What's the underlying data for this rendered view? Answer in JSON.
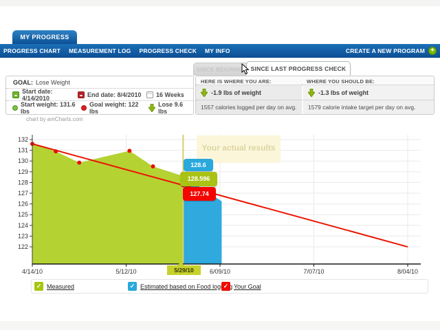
{
  "header": {
    "tab": "MY PROGRESS",
    "nav": [
      "PROGRESS CHART",
      "MEASUREMENT LOG",
      "PROGRESS CHECK",
      "MY INFO"
    ],
    "create_program": "CREATE A NEW PROGRAM"
  },
  "tabs": {
    "inactive": "SINCE BEGINNING",
    "active": "SINCE LAST PROGRESS CHECK"
  },
  "goal": {
    "label": "GOAL:",
    "value": "Lose Weight",
    "start_date": "Start date: 4/14/2010",
    "end_date": "End date: 8/4/2010",
    "duration": "16 Weeks",
    "start_weight": "Start weight: 131.6 lbs",
    "goal_weight": "Goal weight: 122 lbs",
    "lose": "Lose 9.6 lbs"
  },
  "stats": {
    "here_title": "HERE IS WHERE YOU ARE:",
    "should_title": "WHERE YOU SHOULD BE:",
    "here_weight": "-1.9 lbs of weight",
    "should_weight": "-1.3 lbs of weight",
    "here_calories": "1557 calories logged per day on avg.",
    "should_calories": "1579 calorie intake target per day on avg."
  },
  "icons": {
    "plus": "+",
    "check": "✓"
  },
  "chart_data": {
    "type": "area",
    "title": "chart by amCharts.com",
    "ylim": [
      120.4,
      132.45
    ],
    "yticks": [
      122,
      123,
      124,
      125,
      126,
      127,
      128,
      129,
      130,
      131,
      132
    ],
    "xlim_days": [
      0,
      112
    ],
    "xticks": [
      {
        "label": "4/14/10",
        "day": 0
      },
      {
        "label": "5/12/10",
        "day": 28
      },
      {
        "label": "5/29/10",
        "day": 45,
        "highlighted": true
      },
      {
        "label": "6/09/10",
        "day": 56
      },
      {
        "label": "7/07/10",
        "day": 84
      },
      {
        "label": "8/04/10",
        "day": 112
      }
    ],
    "series": [
      {
        "name": "Measured",
        "type": "area",
        "color": "#b5d233",
        "points": [
          [
            0,
            131.6
          ],
          [
            7,
            130.9
          ],
          [
            14,
            129.85
          ],
          [
            29,
            130.95
          ],
          [
            36,
            129.5
          ],
          [
            45,
            128.596
          ]
        ]
      },
      {
        "name": "Estimated based on Food logging",
        "type": "area",
        "color": "#2fa9de",
        "points": [
          [
            45,
            128.6
          ],
          [
            56.5,
            126.25
          ]
        ]
      },
      {
        "name": "Your Goal",
        "type": "line",
        "color": "#ea1400",
        "points": [
          [
            0,
            131.6
          ],
          [
            112,
            122
          ]
        ]
      }
    ],
    "bullets": {
      "color": "#e61000",
      "points": [
        [
          0,
          131.6
        ],
        [
          7,
          130.9
        ],
        [
          14,
          129.85
        ],
        [
          29,
          130.95
        ],
        [
          36,
          129.5
        ],
        [
          45,
          127.74
        ]
      ]
    },
    "cursor": {
      "day": 45,
      "line_color": "#d8d06e",
      "balloon": {
        "label": "5/29/10",
        "color": "#c6d12c"
      },
      "values": [
        {
          "text": "128.6",
          "color": "#29a8dc"
        },
        {
          "text": "128.596",
          "color": "#a9c213"
        },
        {
          "text": "127.74",
          "color": "#f30500"
        }
      ]
    },
    "tooltip": "Your actual results"
  },
  "legend": [
    {
      "label": "Measured",
      "color": "#a5c70f"
    },
    {
      "label": "Estimated based on Food logging",
      "color": "#29a8dc"
    },
    {
      "label": "Your Goal",
      "color": "#f10800"
    }
  ]
}
